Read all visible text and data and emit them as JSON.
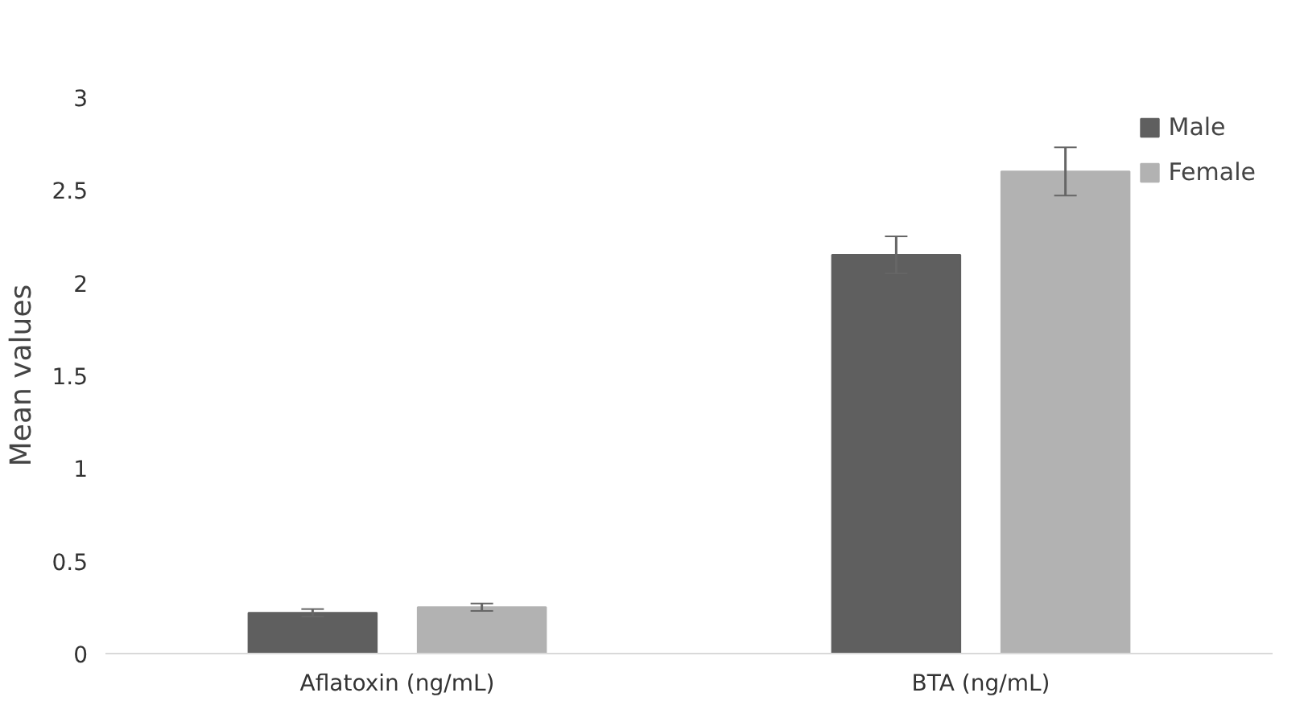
{
  "chart_data": {
    "type": "bar",
    "ylabel": "Mean values",
    "categories": [
      "Aflatoxin (ng/mL)",
      "BTA (ng/mL)"
    ],
    "series": [
      {
        "name": "Male",
        "color": "#5f5f5f",
        "values": [
          0.22,
          2.15
        ],
        "errors": [
          0.02,
          0.1
        ]
      },
      {
        "name": "Female",
        "color": "#b2b2b2",
        "values": [
          0.25,
          2.6
        ],
        "errors": [
          0.02,
          0.13
        ]
      }
    ],
    "ylim": [
      0,
      3
    ],
    "yticks": [
      0,
      0.5,
      1,
      1.5,
      2,
      2.5,
      3
    ],
    "grid": false,
    "legend": "top right"
  }
}
